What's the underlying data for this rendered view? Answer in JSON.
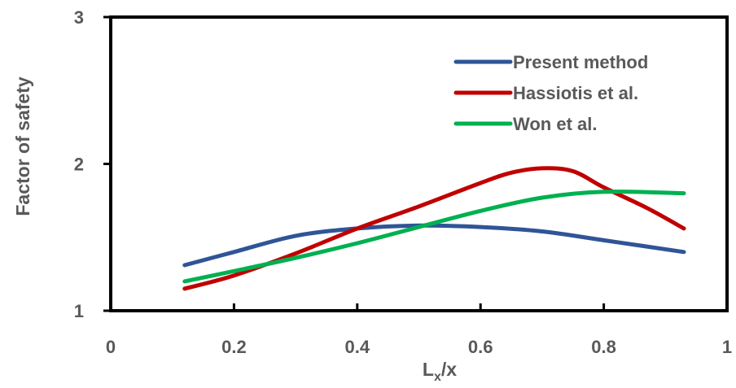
{
  "chart_data": {
    "type": "line",
    "xlabel_main": "L",
    "xlabel_sub": "x",
    "xlabel_tail": "/x",
    "ylabel": "Factor of safety",
    "xlim": [
      0,
      1
    ],
    "ylim": [
      1,
      3
    ],
    "xticks": [
      0,
      0.2,
      0.4,
      0.6,
      0.8,
      1
    ],
    "xtick_labels": [
      "0",
      "0.2",
      "0.4",
      "0.6",
      "0.8",
      "1"
    ],
    "yticks": [
      1,
      2,
      3
    ],
    "ytick_labels": [
      "1",
      "2",
      "3"
    ],
    "grid": false,
    "legend_position": "top-right",
    "series": [
      {
        "name": "Present method",
        "color": "#2F5597",
        "x": [
          0.12,
          0.2,
          0.3,
          0.4,
          0.5,
          0.6,
          0.7,
          0.8,
          0.93
        ],
        "y": [
          1.31,
          1.4,
          1.51,
          1.56,
          1.58,
          1.57,
          1.54,
          1.48,
          1.4
        ]
      },
      {
        "name": "Hassiotis et al.",
        "color": "#C00000",
        "x": [
          0.12,
          0.2,
          0.3,
          0.4,
          0.5,
          0.6,
          0.65,
          0.7,
          0.75,
          0.8,
          0.87,
          0.93
        ],
        "y": [
          1.15,
          1.24,
          1.39,
          1.56,
          1.71,
          1.87,
          1.94,
          1.97,
          1.95,
          1.84,
          1.7,
          1.56
        ]
      },
      {
        "name": "Won et al.",
        "color": "#00B050",
        "x": [
          0.12,
          0.2,
          0.3,
          0.4,
          0.5,
          0.6,
          0.7,
          0.8,
          0.93
        ],
        "y": [
          1.2,
          1.27,
          1.36,
          1.46,
          1.57,
          1.68,
          1.77,
          1.81,
          1.8
        ]
      }
    ]
  }
}
